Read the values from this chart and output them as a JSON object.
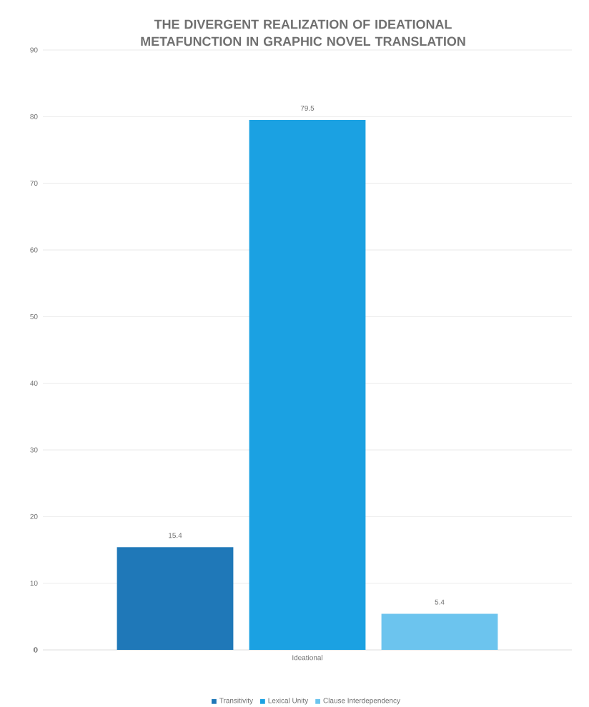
{
  "chart_data": {
    "type": "bar",
    "title": "THE DIVERGENT REALIZATION OF IDEATIONAL METAFUNCTION IN GRAPHIC NOVEL TRANSLATION",
    "categories": [
      "Ideational"
    ],
    "series": [
      {
        "name": "Transitivity",
        "color": "#1f78b8",
        "values": [
          15.4
        ]
      },
      {
        "name": "Lexical Unity",
        "color": "#1ba1e2",
        "values": [
          79.5
        ]
      },
      {
        "name": "Clause Interdependency",
        "color": "#6cc4ee",
        "values": [
          5.4
        ]
      }
    ],
    "ylim": [
      0,
      90
    ],
    "yticks": [
      0,
      10,
      20,
      30,
      40,
      50,
      60,
      70,
      80,
      90
    ],
    "grid": "y",
    "legend": "bottom",
    "data_labels": true
  }
}
